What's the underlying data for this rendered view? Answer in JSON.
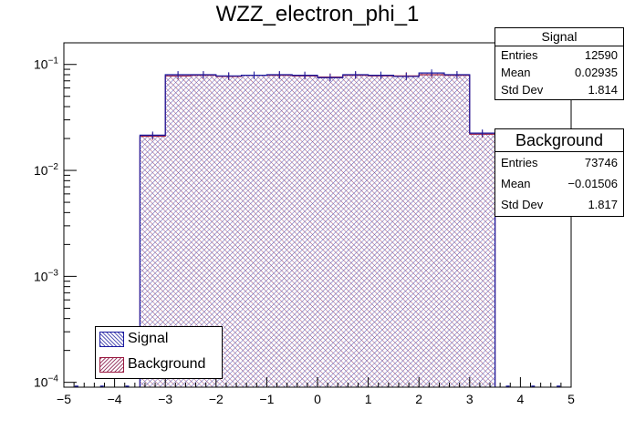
{
  "title": "WZZ_electron_phi_1",
  "colors": {
    "signal_line": "#1a1aa0",
    "signal_hatch": "#5a5ab8",
    "background_line": "#9a1a40",
    "background_hatch": "#a04a70"
  },
  "stats": {
    "signal": {
      "name": "Signal",
      "entries_label": "Entries",
      "entries": "12590",
      "mean_label": "Mean",
      "mean": "0.02935",
      "std_label": "Std Dev",
      "std": "1.814"
    },
    "background": {
      "name": "Background",
      "entries_label": "Entries",
      "entries": "73746",
      "mean_label": "Mean",
      "mean": "−0.01506",
      "std_label": "Std Dev",
      "std": "1.817"
    }
  },
  "legend": {
    "signal": "Signal",
    "background": "Background"
  },
  "chart_data": {
    "type": "bar",
    "title": "WZZ_electron_phi_1",
    "xlim": [
      -5,
      5
    ],
    "ylim": [
      9e-05,
      0.16
    ],
    "yscale": "log",
    "x_ticks": [
      "−5",
      "−4",
      "−3",
      "−2",
      "−1",
      "0",
      "1",
      "2",
      "3",
      "4",
      "5"
    ],
    "y_ticks": [
      {
        "value": 0.1,
        "base": "10",
        "exp": "−1"
      },
      {
        "value": 0.01,
        "base": "10",
        "exp": "−2"
      },
      {
        "value": 0.001,
        "base": "10",
        "exp": "−3"
      },
      {
        "value": 0.0001,
        "base": "10",
        "exp": "−4"
      }
    ],
    "bin_edges": [
      -3.5,
      -3.0,
      -2.5,
      -2.0,
      -1.5,
      -1.0,
      -0.5,
      0.0,
      0.5,
      1.0,
      1.5,
      2.0,
      2.5,
      3.0,
      3.5
    ],
    "series": [
      {
        "name": "Signal",
        "values": [
          0.0215,
          0.08,
          0.08,
          0.078,
          0.079,
          0.08,
          0.079,
          0.075,
          0.08,
          0.079,
          0.077,
          0.083,
          0.08,
          0.0225
        ]
      },
      {
        "name": "Background",
        "values": [
          0.021,
          0.078,
          0.079,
          0.077,
          0.079,
          0.079,
          0.078,
          0.076,
          0.079,
          0.078,
          0.078,
          0.08,
          0.079,
          0.022
        ]
      }
    ],
    "legend_position": "bottom-left",
    "grid": false
  }
}
